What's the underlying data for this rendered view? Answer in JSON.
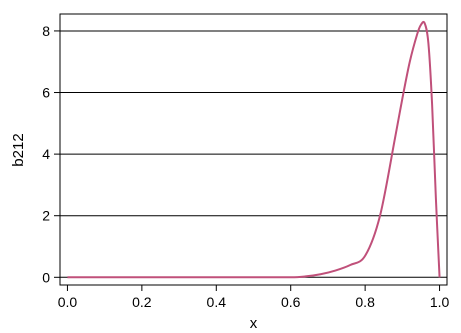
{
  "chart_data": {
    "type": "line",
    "title": "",
    "xlabel": "x",
    "ylabel": "b212",
    "xlim": [
      -0.02,
      1.02
    ],
    "ylim": [
      -0.25,
      8.55
    ],
    "x_ticks": [
      0.0,
      0.2,
      0.4,
      0.6,
      0.8,
      1.0
    ],
    "x_tick_labels": [
      "0.0",
      "0.2",
      "0.4",
      "0.6",
      "0.8",
      "1.0"
    ],
    "y_ticks": [
      0,
      2,
      4,
      6,
      8
    ],
    "y_tick_labels": [
      "0",
      "2",
      "4",
      "6",
      "8"
    ],
    "grid": "horizontal",
    "line_color": "#c0507a",
    "series": [
      {
        "x": [
          0.0,
          0.1,
          0.2,
          0.3,
          0.4,
          0.5,
          0.6,
          0.64,
          0.68,
          0.72,
          0.76,
          0.8,
          0.84,
          0.88,
          0.9,
          0.92,
          0.94,
          0.95,
          0.96,
          0.97,
          0.98,
          0.99,
          1.0
        ],
        "y": [
          0.0,
          0.0,
          0.0,
          0.0,
          0.0,
          0.0,
          0.0,
          0.03,
          0.1,
          0.22,
          0.4,
          0.7,
          2.0,
          4.5,
          5.8,
          7.0,
          7.9,
          8.2,
          8.25,
          7.6,
          5.6,
          2.6,
          0.0
        ]
      }
    ]
  }
}
